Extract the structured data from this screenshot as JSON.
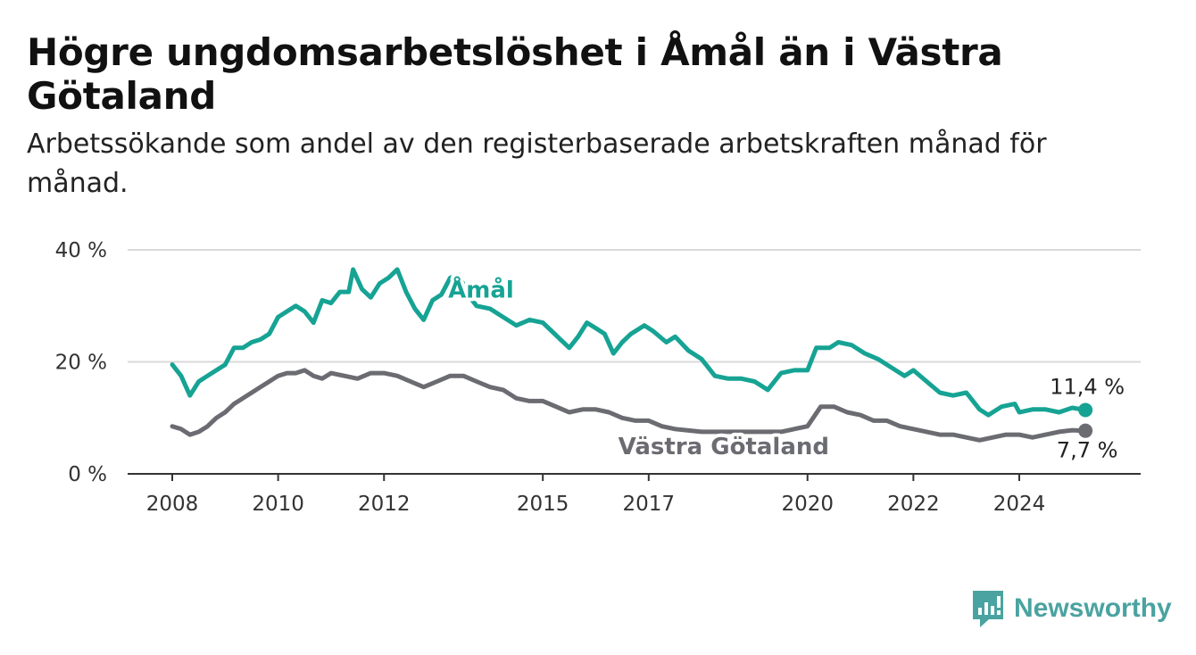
{
  "title": "Högre ungdomsarbetslöshet i Åmål än i Västra Götaland",
  "subtitle": "Arbetssökande som andel av den registerbaserade arbetskraften månad för månad.",
  "brand": {
    "name": "Newsworthy",
    "icon": "newsworthy-logo-icon",
    "color": "#4aa3a0"
  },
  "chart_data": {
    "type": "line",
    "x_range": [
      "2008-01",
      "2025-06"
    ],
    "ylim": [
      0,
      40
    ],
    "y_ticks": [
      {
        "value": 0,
        "label": "0 %"
      },
      {
        "value": 20,
        "label": "20 %"
      },
      {
        "value": 40,
        "label": "40 %"
      }
    ],
    "x_ticks": [
      {
        "value": "2008-01",
        "label": "2008"
      },
      {
        "value": "2010-01",
        "label": "2010"
      },
      {
        "value": "2012-01",
        "label": "2012"
      },
      {
        "value": "2015-01",
        "label": "2015"
      },
      {
        "value": "2017-01",
        "label": "2017"
      },
      {
        "value": "2020-01",
        "label": "2020"
      },
      {
        "value": "2022-01",
        "label": "2022"
      },
      {
        "value": "2024-01",
        "label": "2024"
      }
    ],
    "grid": "horizontal",
    "legend": "inline labels",
    "series": [
      {
        "name": "Åmål",
        "color": "#16a394",
        "end_label": "11,4 %",
        "points": [
          [
            "2008-01",
            19.5
          ],
          [
            "2008-03",
            17.5
          ],
          [
            "2008-05",
            14.0
          ],
          [
            "2008-07",
            16.5
          ],
          [
            "2008-09",
            17.5
          ],
          [
            "2008-11",
            18.5
          ],
          [
            "2009-01",
            19.5
          ],
          [
            "2009-03",
            22.5
          ],
          [
            "2009-05",
            22.5
          ],
          [
            "2009-07",
            23.5
          ],
          [
            "2009-09",
            24.0
          ],
          [
            "2009-11",
            25.0
          ],
          [
            "2010-01",
            28.0
          ],
          [
            "2010-03",
            29.0
          ],
          [
            "2010-05",
            30.0
          ],
          [
            "2010-07",
            29.0
          ],
          [
            "2010-09",
            27.0
          ],
          [
            "2010-11",
            31.0
          ],
          [
            "2011-01",
            30.5
          ],
          [
            "2011-03",
            32.5
          ],
          [
            "2011-05",
            32.5
          ],
          [
            "2011-06",
            36.5
          ],
          [
            "2011-08",
            33.0
          ],
          [
            "2011-10",
            31.5
          ],
          [
            "2011-12",
            34.0
          ],
          [
            "2012-02",
            35.0
          ],
          [
            "2012-04",
            36.5
          ],
          [
            "2012-06",
            32.5
          ],
          [
            "2012-08",
            29.5
          ],
          [
            "2012-10",
            27.5
          ],
          [
            "2012-12",
            31.0
          ],
          [
            "2013-02",
            32.0
          ],
          [
            "2013-04",
            35.0
          ],
          [
            "2013-06",
            35.5
          ],
          [
            "2013-08",
            32.0
          ],
          [
            "2013-10",
            30.0
          ],
          [
            "2014-01",
            29.5
          ],
          [
            "2014-04",
            28.0
          ],
          [
            "2014-07",
            26.5
          ],
          [
            "2014-10",
            27.5
          ],
          [
            "2015-01",
            27.0
          ],
          [
            "2015-03",
            25.5
          ],
          [
            "2015-05",
            24.0
          ],
          [
            "2015-07",
            22.5
          ],
          [
            "2015-09",
            24.5
          ],
          [
            "2015-11",
            27.0
          ],
          [
            "2016-01",
            26.0
          ],
          [
            "2016-03",
            25.0
          ],
          [
            "2016-05",
            21.5
          ],
          [
            "2016-07",
            23.5
          ],
          [
            "2016-09",
            25.0
          ],
          [
            "2016-12",
            26.5
          ],
          [
            "2017-02",
            25.5
          ],
          [
            "2017-05",
            23.5
          ],
          [
            "2017-07",
            24.5
          ],
          [
            "2017-10",
            22.0
          ],
          [
            "2018-01",
            20.5
          ],
          [
            "2018-04",
            17.5
          ],
          [
            "2018-07",
            17.0
          ],
          [
            "2018-10",
            17.0
          ],
          [
            "2019-01",
            16.5
          ],
          [
            "2019-04",
            15.0
          ],
          [
            "2019-07",
            18.0
          ],
          [
            "2019-10",
            18.5
          ],
          [
            "2020-01",
            18.5
          ],
          [
            "2020-03",
            22.5
          ],
          [
            "2020-06",
            22.5
          ],
          [
            "2020-08",
            23.5
          ],
          [
            "2020-11",
            23.0
          ],
          [
            "2021-02",
            21.5
          ],
          [
            "2021-05",
            20.5
          ],
          [
            "2021-08",
            19.0
          ],
          [
            "2021-11",
            17.5
          ],
          [
            "2022-01",
            18.5
          ],
          [
            "2022-04",
            16.5
          ],
          [
            "2022-07",
            14.5
          ],
          [
            "2022-10",
            14.0
          ],
          [
            "2023-01",
            14.5
          ],
          [
            "2023-04",
            11.5
          ],
          [
            "2023-06",
            10.5
          ],
          [
            "2023-09",
            12.0
          ],
          [
            "2023-12",
            12.5
          ],
          [
            "2024-01",
            11.0
          ],
          [
            "2024-04",
            11.5
          ],
          [
            "2024-07",
            11.5
          ],
          [
            "2024-10",
            11.0
          ],
          [
            "2025-01",
            11.8
          ],
          [
            "2025-04",
            11.4
          ]
        ]
      },
      {
        "name": "Västra Götaland",
        "color": "#6b6b72",
        "end_label": "7,7 %",
        "points": [
          [
            "2008-01",
            8.5
          ],
          [
            "2008-03",
            8.0
          ],
          [
            "2008-05",
            7.0
          ],
          [
            "2008-07",
            7.5
          ],
          [
            "2008-09",
            8.5
          ],
          [
            "2008-11",
            10.0
          ],
          [
            "2009-01",
            11.0
          ],
          [
            "2009-03",
            12.5
          ],
          [
            "2009-05",
            13.5
          ],
          [
            "2009-07",
            14.5
          ],
          [
            "2009-09",
            15.5
          ],
          [
            "2009-11",
            16.5
          ],
          [
            "2010-01",
            17.5
          ],
          [
            "2010-03",
            18.0
          ],
          [
            "2010-05",
            18.0
          ],
          [
            "2010-07",
            18.5
          ],
          [
            "2010-09",
            17.5
          ],
          [
            "2010-11",
            17.0
          ],
          [
            "2011-01",
            18.0
          ],
          [
            "2011-04",
            17.5
          ],
          [
            "2011-07",
            17.0
          ],
          [
            "2011-10",
            18.0
          ],
          [
            "2012-01",
            18.0
          ],
          [
            "2012-04",
            17.5
          ],
          [
            "2012-07",
            16.5
          ],
          [
            "2012-10",
            15.5
          ],
          [
            "2013-01",
            16.5
          ],
          [
            "2013-04",
            17.5
          ],
          [
            "2013-07",
            17.5
          ],
          [
            "2013-10",
            16.5
          ],
          [
            "2014-01",
            15.5
          ],
          [
            "2014-04",
            15.0
          ],
          [
            "2014-07",
            13.5
          ],
          [
            "2014-10",
            13.0
          ],
          [
            "2015-01",
            13.0
          ],
          [
            "2015-04",
            12.0
          ],
          [
            "2015-07",
            11.0
          ],
          [
            "2015-10",
            11.5
          ],
          [
            "2016-01",
            11.5
          ],
          [
            "2016-04",
            11.0
          ],
          [
            "2016-07",
            10.0
          ],
          [
            "2016-10",
            9.5
          ],
          [
            "2017-01",
            9.5
          ],
          [
            "2017-04",
            8.5
          ],
          [
            "2017-07",
            8.0
          ],
          [
            "2018-01",
            7.5
          ],
          [
            "2018-07",
            7.5
          ],
          [
            "2019-01",
            7.5
          ],
          [
            "2019-07",
            7.5
          ],
          [
            "2020-01",
            8.5
          ],
          [
            "2020-04",
            12.0
          ],
          [
            "2020-07",
            12.0
          ],
          [
            "2020-10",
            11.0
          ],
          [
            "2021-01",
            10.5
          ],
          [
            "2021-04",
            9.5
          ],
          [
            "2021-07",
            9.5
          ],
          [
            "2021-10",
            8.5
          ],
          [
            "2022-01",
            8.0
          ],
          [
            "2022-04",
            7.5
          ],
          [
            "2022-07",
            7.0
          ],
          [
            "2022-10",
            7.0
          ],
          [
            "2023-01",
            6.5
          ],
          [
            "2023-04",
            6.0
          ],
          [
            "2023-07",
            6.5
          ],
          [
            "2023-10",
            7.0
          ],
          [
            "2024-01",
            7.0
          ],
          [
            "2024-04",
            6.5
          ],
          [
            "2024-07",
            7.0
          ],
          [
            "2024-10",
            7.5
          ],
          [
            "2025-01",
            7.8
          ],
          [
            "2025-04",
            7.7
          ]
        ]
      }
    ]
  }
}
